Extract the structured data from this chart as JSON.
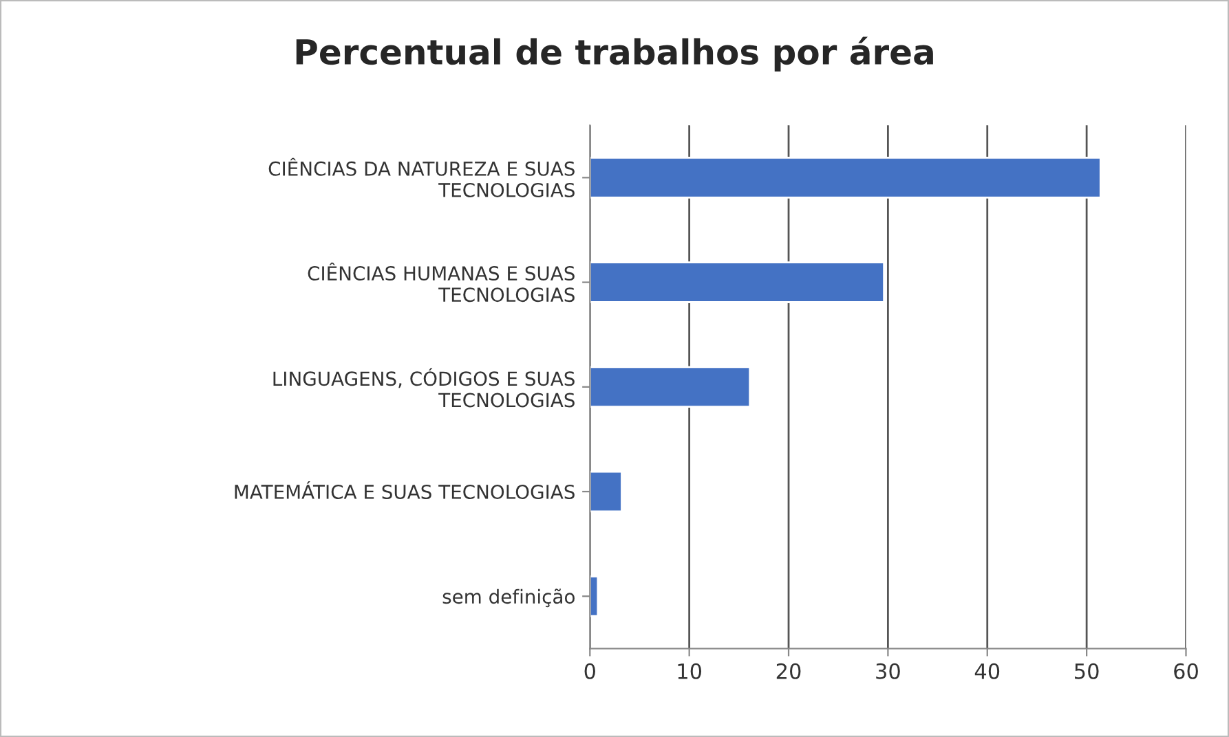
{
  "chart_data": {
    "type": "bar",
    "orientation": "horizontal",
    "title": "Percentual de trabalhos por área",
    "categories": [
      "CIÊNCIAS DA NATUREZA E SUAS\nTECNOLOGIAS",
      "CIÊNCIAS HUMANAS E SUAS\nTECNOLOGIAS",
      "LINGUAGENS, CÓDIGOS E SUAS\nTECNOLOGIAS",
      "MATEMÁTICA E SUAS TECNOLOGIAS",
      "sem definição"
    ],
    "values": [
      51.4,
      29.6,
      16.1,
      3.2,
      0.8
    ],
    "color": "#4472c4",
    "xlim": [
      0,
      60
    ],
    "xticks": [
      0,
      10,
      20,
      30,
      40,
      50,
      60
    ],
    "grid": "x",
    "legend": false
  }
}
